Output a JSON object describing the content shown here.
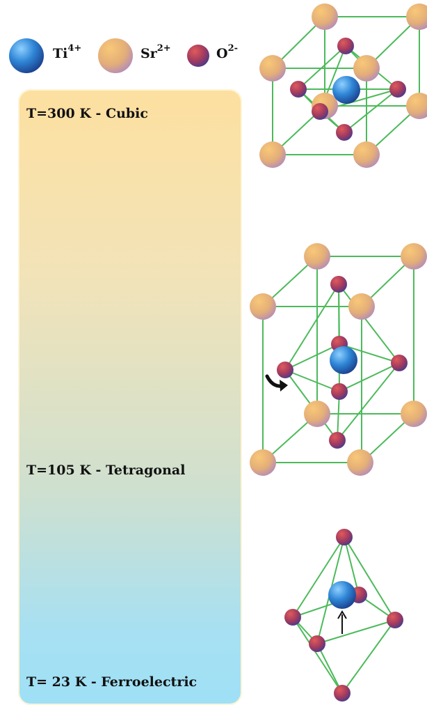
{
  "legend": {
    "ti": {
      "symbol": "Ti",
      "charge": "4+"
    },
    "sr": {
      "symbol": "Sr",
      "charge": "2+"
    },
    "o": {
      "symbol": "O",
      "charge": "2-"
    }
  },
  "phases": [
    {
      "label": "T=300 K - Cubic"
    },
    {
      "label": "T=105 K - Tetragonal"
    },
    {
      "label": "T= 23 K - Ferroelectric"
    }
  ],
  "colors": {
    "bond": "#4cba5a",
    "ti": "#2f7fcf",
    "sr": "#e6b06a",
    "o": "#a53a5e",
    "bar_top": "#fde0a0",
    "bar_bottom": "#9fe0f6"
  }
}
